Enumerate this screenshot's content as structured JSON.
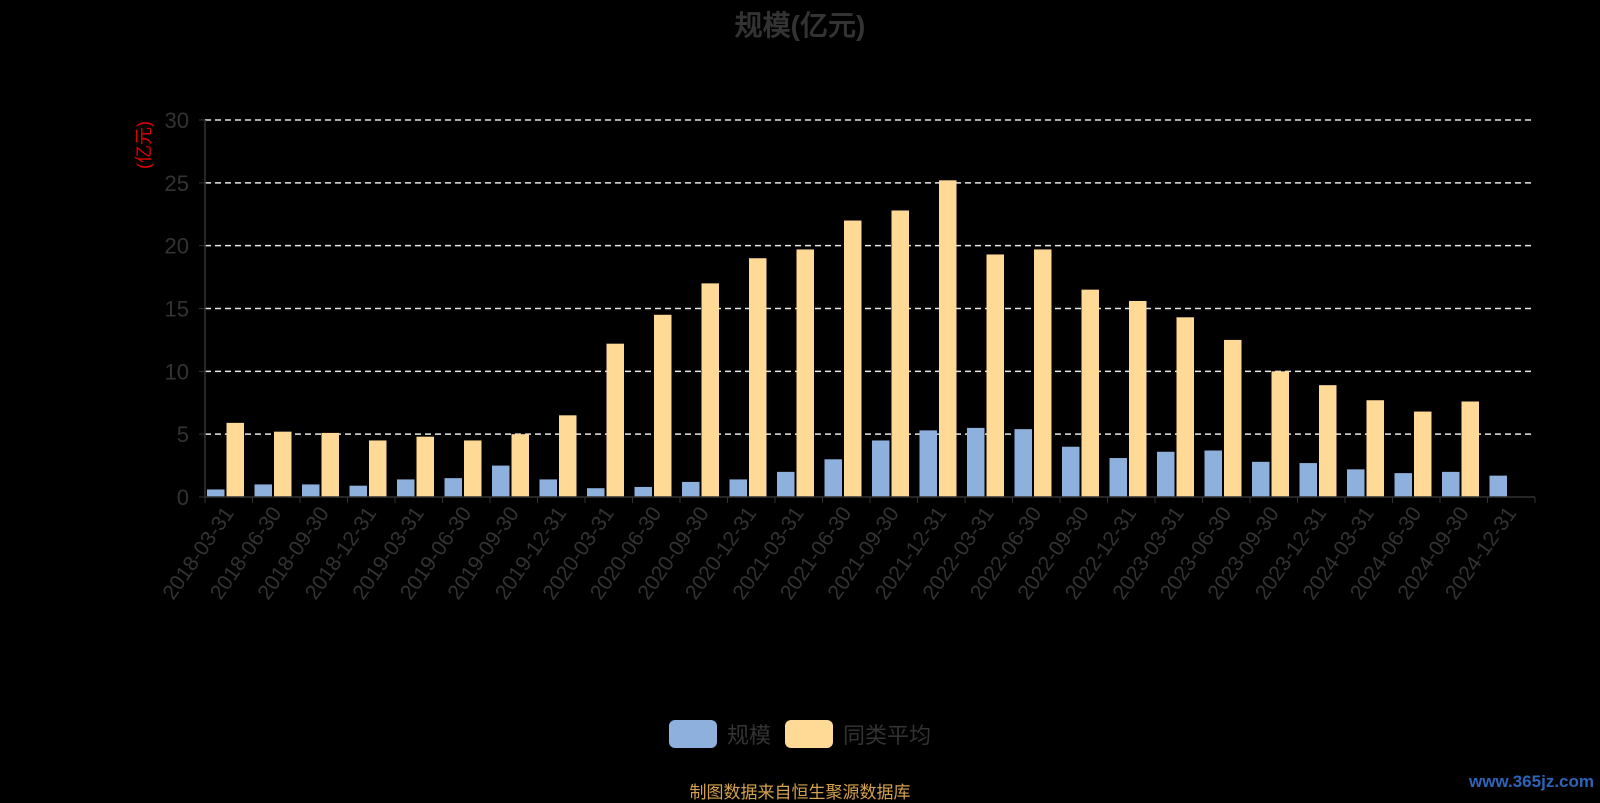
{
  "title": "规模(亿元)",
  "source_note": "制图数据来自恒生聚源数据库",
  "watermark": "www.365jz.com",
  "legend": [
    {
      "label": "规模",
      "color": "#8eb0dd"
    },
    {
      "label": "同类平均",
      "color": "#ffd996"
    }
  ],
  "chart_data": {
    "type": "bar",
    "title": "规模(亿元)",
    "ylabel": "(亿元)",
    "xlabel": "",
    "ylim": [
      0,
      30
    ],
    "yticks": [
      0,
      5,
      10,
      15,
      20,
      25,
      30
    ],
    "grid": true,
    "legend_position": "bottom",
    "categories": [
      "2018-03-31",
      "2018-06-30",
      "2018-09-30",
      "2018-12-31",
      "2019-03-31",
      "2019-06-30",
      "2019-09-30",
      "2019-12-31",
      "2020-03-31",
      "2020-06-30",
      "2020-09-30",
      "2020-12-31",
      "2021-03-31",
      "2021-06-30",
      "2021-09-30",
      "2021-12-31",
      "2022-03-31",
      "2022-06-30",
      "2022-09-30",
      "2022-12-31",
      "2023-03-31",
      "2023-06-30",
      "2023-09-30",
      "2023-12-31",
      "2024-03-31",
      "2024-06-30",
      "2024-09-30",
      "2024-12-31"
    ],
    "series": [
      {
        "name": "规模",
        "color": "#8eb0dd",
        "values": [
          0.6,
          1.0,
          1.0,
          0.9,
          1.4,
          1.5,
          2.5,
          1.4,
          0.7,
          0.8,
          1.2,
          1.4,
          2.0,
          3.0,
          4.5,
          5.3,
          5.5,
          5.4,
          4.0,
          3.1,
          3.6,
          3.7,
          2.8,
          2.7,
          2.2,
          1.9,
          2.0,
          1.7
        ]
      },
      {
        "name": "同类平均",
        "color": "#ffd996",
        "values": [
          5.9,
          5.2,
          5.1,
          4.5,
          4.8,
          4.5,
          5.0,
          6.5,
          12.2,
          14.5,
          17.0,
          19.0,
          19.7,
          22.0,
          22.8,
          25.2,
          19.3,
          19.7,
          16.5,
          15.6,
          14.3,
          12.5,
          10.0,
          8.9,
          7.7,
          6.8,
          7.6,
          null
        ]
      }
    ]
  }
}
